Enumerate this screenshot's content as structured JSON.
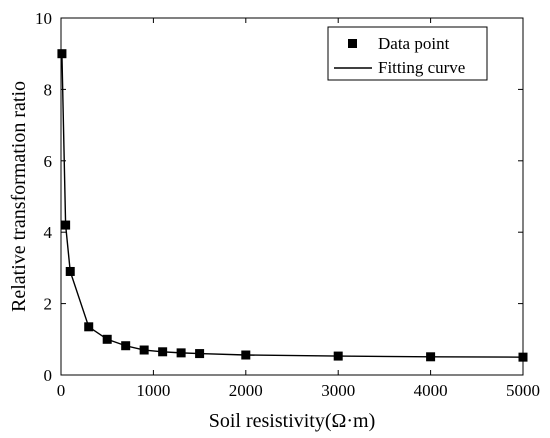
{
  "chart_data": {
    "type": "line",
    "xlabel": "Soil resistivity(Ω·m)",
    "ylabel": "Relative transformation ratio",
    "xlim": [
      0,
      5000
    ],
    "ylim": [
      0,
      10
    ],
    "xticks": [
      0,
      1000,
      2000,
      3000,
      4000,
      5000
    ],
    "yticks": [
      0,
      2,
      4,
      6,
      8,
      10
    ],
    "grid": false,
    "legend_position": "top-right",
    "series": [
      {
        "name": "Data point",
        "style": "markers",
        "marker": "square",
        "color": "#000000",
        "x": [
          10,
          50,
          100,
          300,
          500,
          700,
          900,
          1100,
          1300,
          1500,
          2000,
          3000,
          4000,
          5000
        ],
        "y": [
          9.0,
          4.2,
          2.9,
          1.35,
          1.0,
          0.82,
          0.7,
          0.65,
          0.62,
          0.6,
          0.56,
          0.53,
          0.51,
          0.5
        ]
      },
      {
        "name": "Fitting curve",
        "style": "line",
        "color": "#000000",
        "x": [
          10,
          50,
          100,
          300,
          500,
          700,
          900,
          1100,
          1300,
          1500,
          2000,
          3000,
          4000,
          5000
        ],
        "y": [
          9.0,
          4.2,
          2.9,
          1.35,
          1.0,
          0.82,
          0.7,
          0.65,
          0.62,
          0.6,
          0.56,
          0.53,
          0.51,
          0.5
        ]
      }
    ]
  }
}
